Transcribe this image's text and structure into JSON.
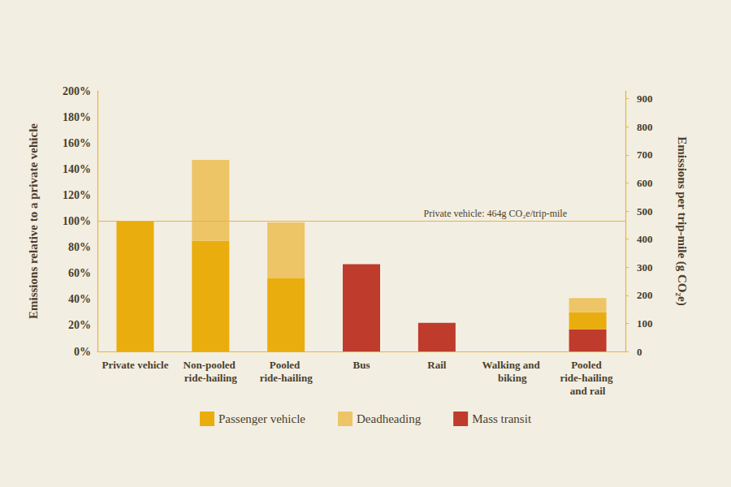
{
  "chart_data": {
    "type": "bar",
    "categories": [
      "Private vehicle",
      "Non-pooled ride-hailing",
      "Pooled ride-hailing",
      "Bus",
      "Rail",
      "Walking and biking",
      "Pooled ride-hailing and rail"
    ],
    "series": [
      {
        "name": "Passenger vehicle",
        "color": "#e9ad0e",
        "values": [
          100,
          85,
          56,
          null,
          null,
          null,
          13
        ]
      },
      {
        "name": "Deadheading",
        "color": "#edc566",
        "values": [
          null,
          62,
          43,
          null,
          null,
          null,
          11
        ]
      },
      {
        "name": "Mass transit",
        "color": "#bf3b2c",
        "values": [
          null,
          null,
          null,
          67,
          22,
          null,
          17
        ]
      }
    ],
    "ylabel": "Emissions relative to a private vehicle",
    "y2label": "Emissions per trip-mile (g CO₂e)",
    "ylim": [
      0,
      200
    ],
    "yticks": [
      {
        "value": 0,
        "label": "0%"
      },
      {
        "value": 20,
        "label": "20%"
      },
      {
        "value": 40,
        "label": "40%"
      },
      {
        "value": 60,
        "label": "60%"
      },
      {
        "value": 80,
        "label": "80%"
      },
      {
        "value": 100,
        "label": "100%"
      },
      {
        "value": 120,
        "label": "120%"
      },
      {
        "value": 140,
        "label": "140%"
      },
      {
        "value": 160,
        "label": "160%"
      },
      {
        "value": 180,
        "label": "180%"
      },
      {
        "value": 200,
        "label": "200%"
      }
    ],
    "y2lim": [
      0,
      928
    ],
    "y2ticks": [
      0,
      100,
      200,
      300,
      400,
      500,
      600,
      700,
      800,
      900
    ],
    "stacked": true,
    "grid": false,
    "legend": "bottom",
    "annotations": [
      {
        "text": "Private vehicle: 464g CO₂e/trip-mile",
        "y": 100
      }
    ]
  }
}
